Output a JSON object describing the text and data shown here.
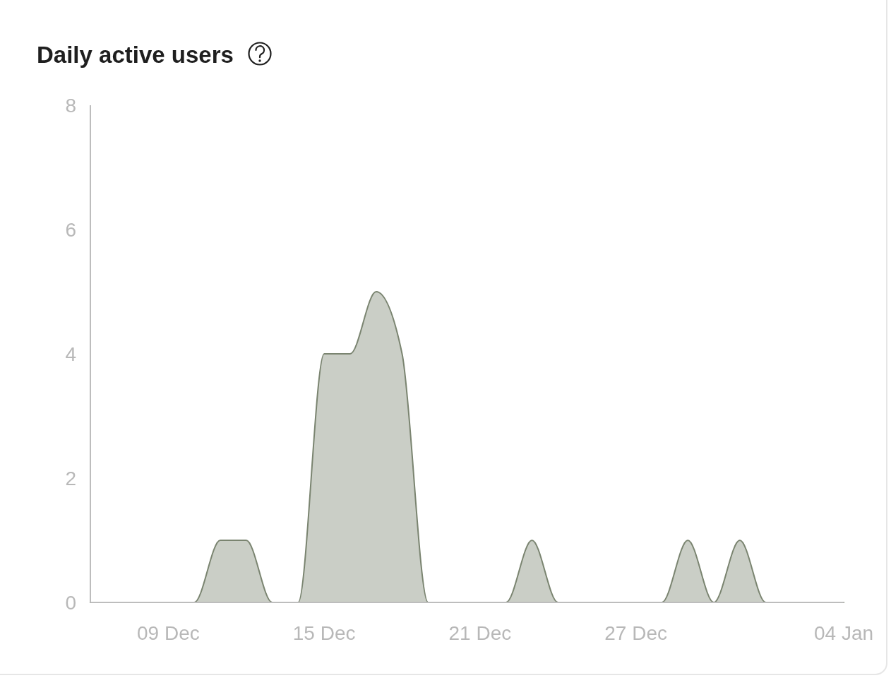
{
  "chart_data": {
    "type": "area",
    "title": "Daily active users",
    "categories": [
      null,
      null,
      null,
      "09 Dec",
      null,
      null,
      null,
      null,
      null,
      "15 Dec",
      null,
      null,
      null,
      null,
      null,
      "21 Dec",
      null,
      null,
      null,
      null,
      null,
      "27 Dec",
      null,
      null,
      null,
      null,
      null,
      null,
      null,
      "04 Jan"
    ],
    "values": [
      0,
      0,
      0,
      0,
      0,
      1,
      1,
      0,
      0,
      4,
      4,
      5,
      4,
      0,
      0,
      0,
      0,
      1,
      0,
      0,
      0,
      0,
      0,
      1,
      0,
      1,
      0,
      0,
      0,
      0
    ],
    "color": "#7a8470",
    "ylim": [
      0,
      8
    ],
    "yticks": [
      0,
      2,
      4,
      6,
      8
    ]
  }
}
